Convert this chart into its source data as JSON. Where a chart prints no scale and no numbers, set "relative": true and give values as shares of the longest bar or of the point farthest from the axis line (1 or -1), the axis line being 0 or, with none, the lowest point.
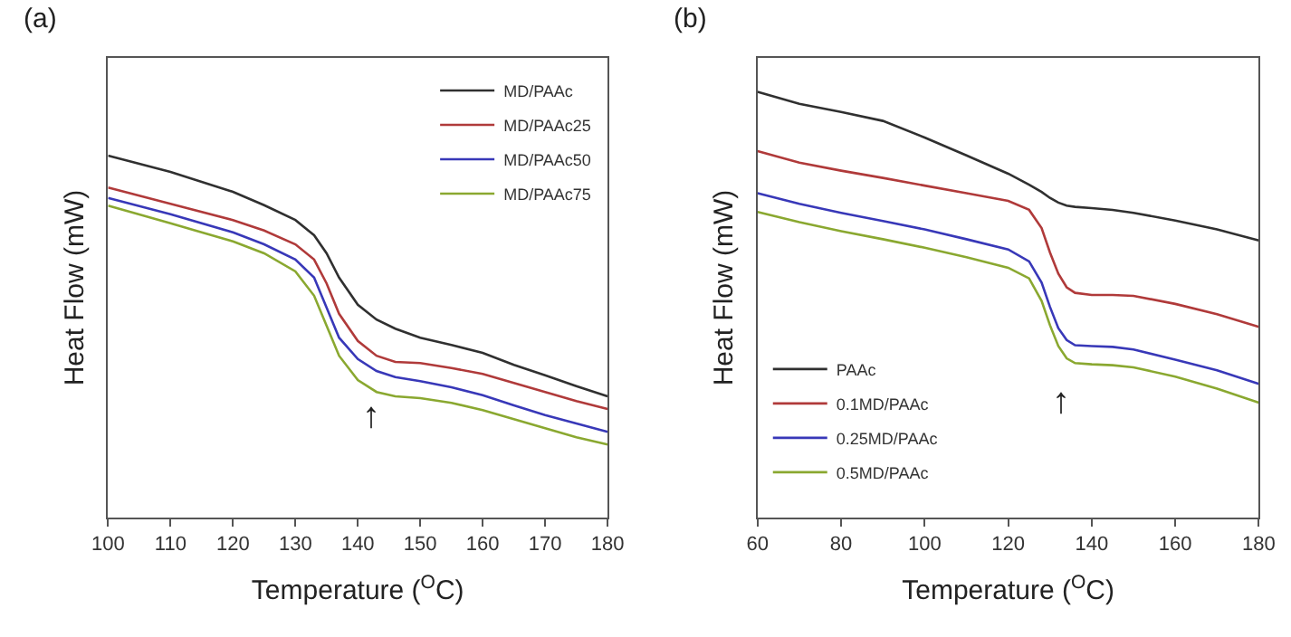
{
  "chart_data": [
    {
      "type": "line",
      "title": "(a)",
      "xlabel": "Temperature ($^{O}$C)",
      "ylabel": "Heat Flow (mW)",
      "relative": true,
      "tick_labels": "x",
      "legend": "top right",
      "marker": "none",
      "line_style": "solid",
      "x": [
        100,
        110,
        120,
        125,
        130,
        133,
        135,
        137,
        140,
        143,
        146,
        150,
        155,
        160,
        165,
        170,
        175,
        180
      ],
      "xlim": [
        100,
        180
      ],
      "xticks": [
        100,
        110,
        120,
        130,
        140,
        150,
        160,
        170,
        180
      ],
      "annotations": [
        "↑"
      ],
      "series": [
        {
          "name": "MD/PAAc",
          "color": "#303030",
          "values": [
            1.0,
            0.955,
            0.9,
            0.863,
            0.822,
            0.78,
            0.73,
            0.663,
            0.588,
            0.547,
            0.522,
            0.497,
            0.477,
            0.455,
            0.422,
            0.393,
            0.363,
            0.335
          ]
        },
        {
          "name": "MD/PAAc25",
          "color": "#b03a3a",
          "values": [
            0.912,
            0.867,
            0.822,
            0.793,
            0.755,
            0.713,
            0.647,
            0.563,
            0.488,
            0.447,
            0.43,
            0.427,
            0.413,
            0.397,
            0.372,
            0.347,
            0.322,
            0.3
          ]
        },
        {
          "name": "MD/PAAc50",
          "color": "#3838b8",
          "values": [
            0.883,
            0.838,
            0.788,
            0.755,
            0.713,
            0.663,
            0.58,
            0.497,
            0.438,
            0.405,
            0.388,
            0.377,
            0.36,
            0.338,
            0.31,
            0.283,
            0.26,
            0.237
          ]
        },
        {
          "name": "MD/PAAc75",
          "color": "#8aa830",
          "values": [
            0.862,
            0.813,
            0.763,
            0.73,
            0.68,
            0.613,
            0.53,
            0.447,
            0.38,
            0.347,
            0.335,
            0.33,
            0.317,
            0.297,
            0.272,
            0.247,
            0.222,
            0.202
          ]
        }
      ]
    },
    {
      "type": "line",
      "title": "(b)",
      "xlabel": "Temperature ($^{O}$C)",
      "ylabel": "Heat Flow (mW)",
      "relative": true,
      "tick_labels": "x",
      "legend": "bottom left",
      "marker": "none",
      "line_style": "solid",
      "x": [
        60,
        70,
        80,
        90,
        100,
        110,
        120,
        125,
        128,
        130,
        132,
        134,
        136,
        140,
        145,
        150,
        160,
        170,
        180
      ],
      "xlim": [
        60,
        180
      ],
      "xticks": [
        60,
        80,
        100,
        120,
        140,
        160,
        180
      ],
      "annotations": [
        "↑"
      ],
      "series": [
        {
          "name": "PAAc",
          "color": "#303030",
          "values": [
            1.0,
            0.972,
            0.953,
            0.932,
            0.893,
            0.851,
            0.808,
            0.782,
            0.765,
            0.751,
            0.74,
            0.733,
            0.73,
            0.727,
            0.723,
            0.716,
            0.698,
            0.677,
            0.651
          ]
        },
        {
          "name": "0.1MD/PAAc",
          "color": "#b03a3a",
          "values": [
            0.861,
            0.834,
            0.815,
            0.798,
            0.78,
            0.762,
            0.744,
            0.723,
            0.68,
            0.623,
            0.573,
            0.541,
            0.528,
            0.523,
            0.523,
            0.521,
            0.502,
            0.478,
            0.448
          ]
        },
        {
          "name": "0.25MD/PAAc",
          "color": "#3838b8",
          "values": [
            0.762,
            0.737,
            0.716,
            0.697,
            0.677,
            0.654,
            0.63,
            0.602,
            0.552,
            0.495,
            0.445,
            0.417,
            0.405,
            0.403,
            0.401,
            0.395,
            0.371,
            0.346,
            0.314
          ]
        },
        {
          "name": "0.5MD/PAAc",
          "color": "#8aa830",
          "values": [
            0.718,
            0.694,
            0.673,
            0.654,
            0.634,
            0.612,
            0.587,
            0.562,
            0.509,
            0.452,
            0.403,
            0.374,
            0.363,
            0.36,
            0.358,
            0.353,
            0.331,
            0.303,
            0.27
          ]
        }
      ]
    }
  ]
}
